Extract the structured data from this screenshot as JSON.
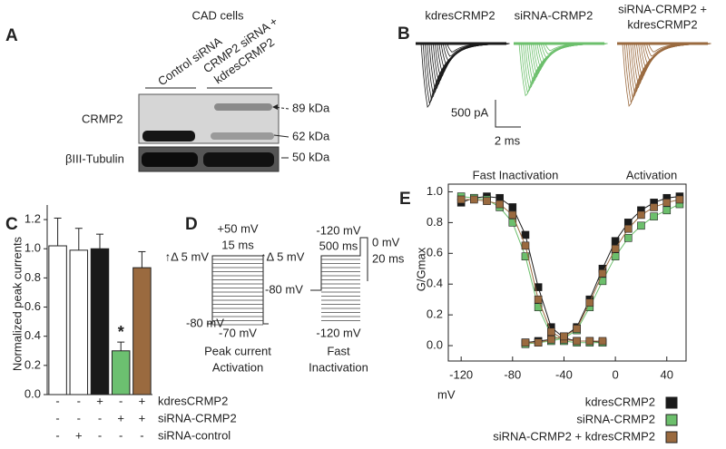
{
  "panel_a": {
    "label": "A",
    "title": "CAD cells",
    "lanes": [
      "Control siRNA",
      [
        "CRMP2 siRNA +",
        "kdresCRMP2"
      ]
    ],
    "rows": [
      "CRMP2",
      "βIII-Tubulin"
    ],
    "markers": [
      "89 kDa",
      "62 kDa",
      "50 kDa"
    ]
  },
  "panel_b": {
    "label": "B",
    "conditions": [
      "kdresCRMP2",
      "siRNA-CRMP2",
      [
        "siRNA-CRMP2 +",
        "kdresCRMP2"
      ]
    ],
    "scale": [
      "500 pA",
      "2 ms"
    ]
  },
  "panel_d": {
    "label": "D",
    "activation": {
      "top": "+50 mV",
      "duration": "15 ms",
      "step": "↑Δ 5 mV",
      "hold": "-80 mV",
      "bottom": "-70 mV",
      "name": [
        "Peak current",
        "Activation"
      ]
    },
    "inactivation": {
      "top": "-120 mV",
      "duration": "500 ms",
      "test": "0 mV",
      "test_duration": "20 ms",
      "step": "↑Δ 5 mV",
      "hold": "-80 mV",
      "bottom": "-120 mV",
      "name": [
        "Fast",
        "Inactivation"
      ]
    }
  },
  "chart_data": [
    {
      "type": "bar",
      "label": "C",
      "ylabel": "Normalized peak currents",
      "categories": [
        null,
        null,
        null,
        null,
        null
      ],
      "values": [
        1.02,
        0.99,
        1.0,
        0.3,
        0.87
      ],
      "errors": [
        0.19,
        0.15,
        0.1,
        0.06,
        0.11
      ],
      "colors": [
        "#ffffff",
        "#ffffff",
        "#1a1a1a",
        "#6cc070",
        "#9a6a3f"
      ],
      "annotation": "*",
      "ylim": [
        0,
        1.3
      ],
      "yticks": [
        {
          "value": 0,
          "label": "0.0"
        },
        {
          "value": 0.2,
          "label": "0.2"
        },
        {
          "value": 0.4,
          "label": "0.4"
        },
        {
          "value": 0.6,
          "label": "0.6"
        },
        {
          "value": 0.8,
          "label": "0.8"
        },
        {
          "value": 1,
          "label": "1.0"
        },
        {
          "value": 1.2,
          "label": "1.2"
        }
      ],
      "conditions": [
        {
          "name": "kdresCRMP2",
          "marks": [
            "-",
            "-",
            "+",
            "-",
            "+"
          ]
        },
        {
          "name": "siRNA-CRMP2",
          "marks": [
            "-",
            "-",
            "-",
            "+",
            "+"
          ]
        },
        {
          "name": "siRNA-control",
          "marks": [
            "-",
            "+",
            "-",
            "-",
            "-"
          ]
        }
      ]
    },
    {
      "type": "scatter",
      "label": "E",
      "ylabel": "G/Gmax",
      "xlabel": "mV",
      "annotations": [
        "Fast Inactivation",
        "Activation"
      ],
      "xlim": [
        -130,
        55
      ],
      "xticks": [
        -120,
        -80,
        -40,
        0,
        40
      ],
      "ylim": [
        -0.1,
        1.05
      ],
      "yticks": [
        {
          "value": 0,
          "label": "0.0"
        },
        {
          "value": 0.2,
          "label": "0.2"
        },
        {
          "value": 0.4,
          "label": "0.4"
        },
        {
          "value": 0.6,
          "label": "0.6"
        },
        {
          "value": 0.8,
          "label": "0.8"
        },
        {
          "value": 1,
          "label": "1.0"
        }
      ],
      "series": [
        {
          "name": "kdresCRMP2",
          "color": "#1a1a1a",
          "inactivation": {
            "x": [
              -120,
              -110,
              -100,
              -90,
              -80,
              -70,
              -60,
              -50,
              -40,
              -30,
              -20,
              -10
            ],
            "values": [
              0.93,
              0.96,
              0.97,
              0.96,
              0.9,
              0.72,
              0.38,
              0.12,
              0.05,
              0.03,
              0.03,
              0.02
            ]
          },
          "activation": {
            "x": [
              -70,
              -60,
              -50,
              -40,
              -30,
              -20,
              -10,
              0,
              10,
              20,
              30,
              40,
              50
            ],
            "values": [
              0.02,
              0.03,
              0.04,
              0.06,
              0.12,
              0.3,
              0.5,
              0.68,
              0.8,
              0.88,
              0.93,
              0.96,
              0.97
            ]
          }
        },
        {
          "name": "siRNA-CRMP2",
          "color": "#6cbf6c",
          "inactivation": {
            "x": [
              -120,
              -110,
              -100,
              -90,
              -80,
              -70,
              -60,
              -50,
              -40,
              -30,
              -20,
              -10
            ],
            "values": [
              0.97,
              0.96,
              0.95,
              0.9,
              0.8,
              0.58,
              0.25,
              0.07,
              0.03,
              0.02,
              0.02,
              0.02
            ]
          },
          "activation": {
            "x": [
              -70,
              -60,
              -50,
              -40,
              -30,
              -20,
              -10,
              0,
              10,
              20,
              30,
              40,
              50
            ],
            "values": [
              0.01,
              0.02,
              0.03,
              0.05,
              0.1,
              0.25,
              0.42,
              0.58,
              0.7,
              0.78,
              0.84,
              0.88,
              0.92
            ]
          }
        },
        {
          "name": "siRNA-CRMP2 + kdresCRMP2",
          "color": "#9a6a3f",
          "inactivation": {
            "x": [
              -120,
              -110,
              -100,
              -90,
              -80,
              -70,
              -60,
              -50,
              -40,
              -30,
              -20,
              -10
            ],
            "values": [
              0.95,
              0.95,
              0.94,
              0.92,
              0.85,
              0.65,
              0.3,
              0.09,
              0.04,
              0.03,
              0.03,
              0.03
            ]
          },
          "activation": {
            "x": [
              -70,
              -60,
              -50,
              -40,
              -30,
              -20,
              -10,
              0,
              10,
              20,
              30,
              40,
              50
            ],
            "values": [
              0.02,
              0.02,
              0.04,
              0.06,
              0.11,
              0.28,
              0.47,
              0.63,
              0.76,
              0.85,
              0.9,
              0.93,
              0.95
            ]
          }
        }
      ]
    }
  ]
}
